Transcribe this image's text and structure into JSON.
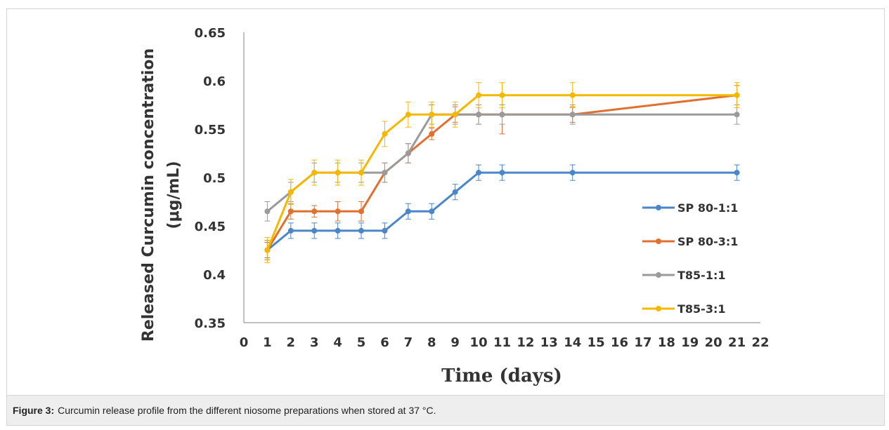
{
  "caption": {
    "label": "Figure 3:",
    "text": "Curcumin release profile from the different niosome preparations when stored at 37 °C."
  },
  "chart_data": {
    "type": "line",
    "title": "",
    "xlabel": "Time (days)",
    "ylabel_line1": "Released Curcumin concentration",
    "ylabel_line2": "(μg/mL)",
    "x_tick_labels": [
      "0",
      "1",
      "2",
      "3",
      "4",
      "5",
      "6",
      "7",
      "8",
      "9",
      "10",
      "11",
      "12",
      "13",
      "14",
      "15",
      "16",
      "17",
      "18",
      "19",
      "20",
      "21",
      "22"
    ],
    "y_ticks": [
      0.35,
      0.4,
      0.45,
      0.5,
      0.55,
      0.6,
      0.65
    ],
    "y_tick_labels": [
      "0.35",
      "0.4",
      "0.45",
      "0.5",
      "0.55",
      "0.6",
      "0.65"
    ],
    "ylim": [
      0.35,
      0.65
    ],
    "legend_position": "right",
    "x": [
      1,
      2,
      3,
      4,
      5,
      6,
      7,
      8,
      9,
      10,
      11,
      14,
      21
    ],
    "series": [
      {
        "name": "SP 80-1:1",
        "color": "#4a86c8",
        "values": [
          0.425,
          0.445,
          0.445,
          0.445,
          0.445,
          0.445,
          0.465,
          0.465,
          0.485,
          0.505,
          0.505,
          0.505,
          0.505
        ],
        "errors": [
          0.008,
          0.008,
          0.008,
          0.008,
          0.008,
          0.008,
          0.008,
          0.008,
          0.008,
          0.008,
          0.008,
          0.008,
          0.008
        ]
      },
      {
        "name": "SP 80-3:1",
        "color": "#e07030",
        "values": [
          0.425,
          0.465,
          0.465,
          0.465,
          0.465,
          0.505,
          0.525,
          0.545,
          0.565,
          0.565,
          0.565,
          0.565,
          0.585
        ],
        "errors": [
          0.01,
          0.008,
          0.006,
          0.01,
          0.01,
          0.01,
          0.01,
          0.006,
          0.008,
          0.01,
          0.02,
          0.008,
          0.01
        ]
      },
      {
        "name": "T85-1:1",
        "color": "#9a9a9a",
        "values": [
          0.465,
          0.485,
          0.505,
          0.505,
          0.505,
          0.505,
          0.525,
          0.565,
          0.565,
          0.565,
          0.565,
          0.565,
          0.565
        ],
        "errors": [
          0.01,
          0.01,
          0.01,
          0.01,
          0.01,
          0.01,
          0.01,
          0.01,
          0.01,
          0.01,
          0.01,
          0.01,
          0.01
        ]
      },
      {
        "name": "T85-3:1",
        "color": "#f5b800",
        "values": [
          0.425,
          0.485,
          0.505,
          0.505,
          0.505,
          0.545,
          0.565,
          0.565,
          0.565,
          0.585,
          0.585,
          0.585,
          0.585
        ],
        "errors": [
          0.013,
          0.013,
          0.013,
          0.013,
          0.013,
          0.013,
          0.013,
          0.013,
          0.013,
          0.013,
          0.013,
          0.013,
          0.013
        ]
      }
    ]
  }
}
